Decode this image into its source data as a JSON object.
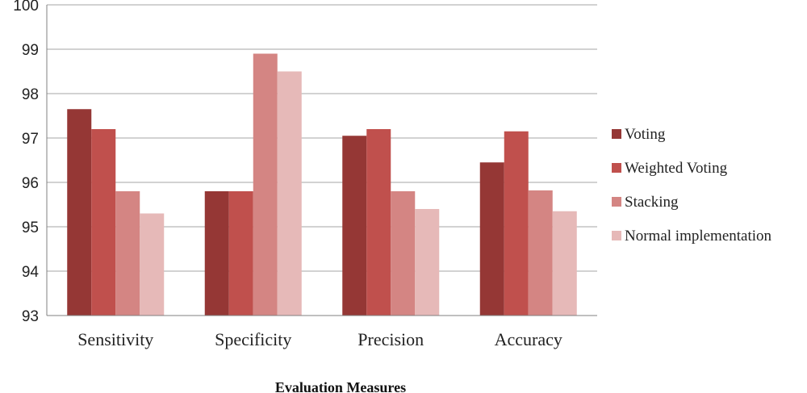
{
  "chart_data": {
    "type": "bar",
    "categories": [
      "Sensitivity",
      "Specificity",
      "Precision",
      "Accuracy"
    ],
    "series": [
      {
        "name": "Voting",
        "color": "#953735",
        "values": [
          97.65,
          95.8,
          97.05,
          96.45
        ]
      },
      {
        "name": "Weighted Voting",
        "color": "#C0504D",
        "values": [
          97.2,
          95.8,
          97.2,
          97.15
        ]
      },
      {
        "name": "Stacking",
        "color": "#D48583",
        "values": [
          95.8,
          98.9,
          95.8,
          95.82
        ]
      },
      {
        "name": "Normal implementation",
        "color": "#E6B9B8",
        "values": [
          95.3,
          98.5,
          95.4,
          95.35
        ]
      }
    ],
    "xlabel": "Evaluation Measures",
    "ylabel": "",
    "ylim": [
      93,
      100
    ],
    "yticks": [
      93,
      94,
      95,
      96,
      97,
      98,
      99,
      100
    ],
    "grid": true,
    "legend_position": "right"
  }
}
